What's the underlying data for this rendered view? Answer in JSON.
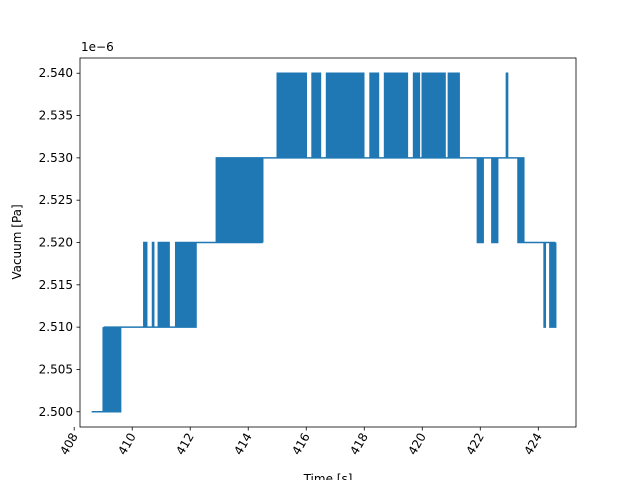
{
  "chart_data": {
    "type": "line",
    "title": "",
    "xlabel": "Time [s]",
    "ylabel": "Vacuum [Pa]",
    "y_offset_text": "1e−6",
    "xlim": [
      408.2,
      425.3
    ],
    "ylim": [
      2.4982,
      2.5418
    ],
    "x_ticks": [
      408,
      410,
      412,
      414,
      416,
      418,
      420,
      422,
      424
    ],
    "x_tick_labels": [
      "408",
      "410",
      "412",
      "414",
      "416",
      "418",
      "420",
      "422",
      "424"
    ],
    "y_ticks": [
      2.5,
      2.505,
      2.51,
      2.515,
      2.52,
      2.525,
      2.53,
      2.535,
      2.54
    ],
    "y_tick_labels": [
      "2.500",
      "2.505",
      "2.510",
      "2.515",
      "2.520",
      "2.525",
      "2.530",
      "2.535",
      "2.540"
    ],
    "x_tick_rotation_deg": 60,
    "grid": false,
    "legend": "none",
    "series": [
      {
        "color": "#1f77b4",
        "levels": [
          {
            "start": 408.6,
            "end": 409.0,
            "base": 2.5,
            "alt": null,
            "oscillation_spans": []
          },
          {
            "start": 409.0,
            "end": 410.4,
            "base": 2.51,
            "alt": 2.5,
            "oscillation_spans": [
              [
                409.0,
                409.6
              ]
            ]
          },
          {
            "start": 410.4,
            "end": 412.0,
            "base": 2.51,
            "alt": 2.52,
            "oscillation_spans": [
              [
                410.4,
                410.5
              ],
              [
                410.7,
                410.75
              ],
              [
                410.9,
                411.3
              ],
              [
                411.5,
                412.2
              ]
            ]
          },
          {
            "start": 412.0,
            "end": 412.9,
            "base": 2.52,
            "alt": null,
            "oscillation_spans": []
          },
          {
            "start": 412.9,
            "end": 414.5,
            "base": 2.52,
            "alt": 2.53,
            "oscillation_spans": [
              [
                412.9,
                414.5
              ]
            ]
          },
          {
            "start": 414.5,
            "end": 421.8,
            "base": 2.53,
            "alt": 2.54,
            "oscillation_spans": [
              [
                415.0,
                416.0
              ],
              [
                416.2,
                416.5
              ],
              [
                416.7,
                418.0
              ],
              [
                418.2,
                418.5
              ],
              [
                418.7,
                419.5
              ],
              [
                419.7,
                419.9
              ],
              [
                420.0,
                420.8
              ],
              [
                420.9,
                421.3
              ],
              [
                422.9,
                422.95
              ]
            ]
          },
          {
            "start": 421.8,
            "end": 423.4,
            "base": 2.53,
            "alt": 2.52,
            "oscillation_spans": [
              [
                421.9,
                422.1
              ],
              [
                422.4,
                422.6
              ],
              [
                423.3,
                423.5
              ]
            ]
          },
          {
            "start": 423.4,
            "end": 424.6,
            "base": 2.52,
            "alt": 2.51,
            "oscillation_spans": [
              [
                424.2,
                424.25
              ],
              [
                424.4,
                424.6
              ]
            ]
          }
        ]
      }
    ]
  }
}
